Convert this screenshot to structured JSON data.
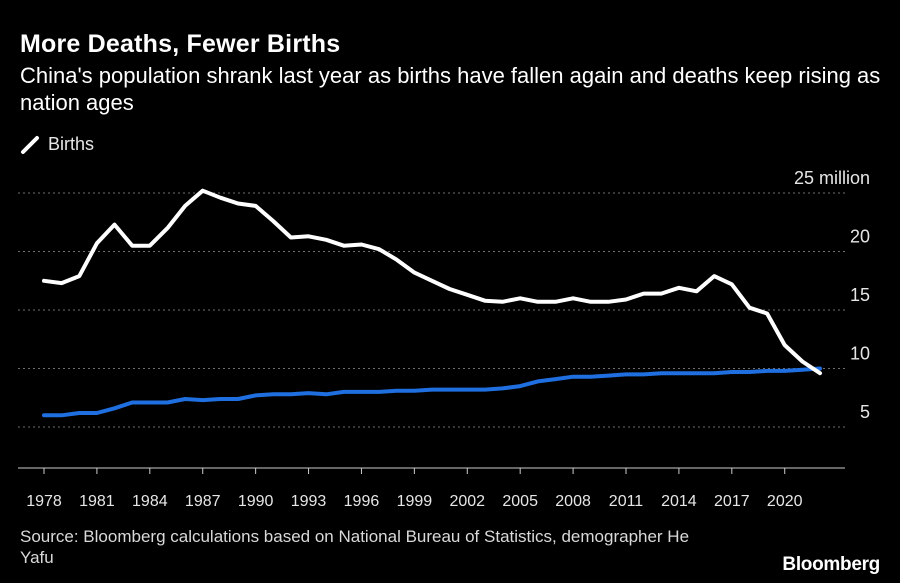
{
  "header": {
    "title": "More Deaths, Fewer Births",
    "subtitle": "China's population shrank last year as births have fallen again and deaths keep rising as nation ages"
  },
  "legend": {
    "label": "Births"
  },
  "footer": {
    "source": "Source: Bloomberg calculations based on National Bureau of Statistics, demographer He Yafu",
    "brand": "Bloomberg"
  },
  "colors": {
    "background": "#000000",
    "births": "#ffffff",
    "deaths": "#1f6fe0",
    "grid": "#6e6e6e",
    "text": "#ffffff"
  },
  "chart_data": {
    "type": "line",
    "x": [
      1978,
      1979,
      1980,
      1981,
      1982,
      1983,
      1984,
      1985,
      1986,
      1987,
      1988,
      1989,
      1990,
      1991,
      1992,
      1993,
      1994,
      1995,
      1996,
      1997,
      1998,
      1999,
      2000,
      2001,
      2002,
      2003,
      2004,
      2005,
      2006,
      2007,
      2008,
      2009,
      2010,
      2011,
      2012,
      2013,
      2014,
      2015,
      2016,
      2017,
      2018,
      2019,
      2020,
      2021,
      2022
    ],
    "series": [
      {
        "name": "Births",
        "color": "#ffffff",
        "values": [
          17.5,
          17.3,
          17.9,
          20.7,
          22.3,
          20.5,
          20.5,
          22.0,
          23.9,
          25.2,
          24.6,
          24.1,
          23.9,
          22.6,
          21.2,
          21.3,
          21.0,
          20.5,
          20.6,
          20.2,
          19.3,
          18.2,
          17.5,
          16.8,
          16.3,
          15.8,
          15.7,
          16.0,
          15.7,
          15.7,
          16.0,
          15.7,
          15.7,
          15.9,
          16.4,
          16.4,
          16.9,
          16.6,
          17.9,
          17.2,
          15.2,
          14.7,
          12.0,
          10.6,
          9.6
        ]
      },
      {
        "name": "",
        "color": "#1f6fe0",
        "values": [
          6.0,
          6.0,
          6.2,
          6.2,
          6.6,
          7.1,
          7.1,
          7.1,
          7.4,
          7.3,
          7.4,
          7.4,
          7.7,
          7.8,
          7.8,
          7.9,
          7.8,
          8.0,
          8.0,
          8.0,
          8.1,
          8.1,
          8.2,
          8.2,
          8.2,
          8.2,
          8.3,
          8.5,
          8.9,
          9.1,
          9.3,
          9.3,
          9.4,
          9.5,
          9.5,
          9.6,
          9.6,
          9.6,
          9.6,
          9.7,
          9.7,
          9.8,
          9.8,
          9.9,
          10.0
        ]
      }
    ],
    "y_ticks": [
      {
        "value": 5,
        "label": "5"
      },
      {
        "value": 10,
        "label": "10"
      },
      {
        "value": 15,
        "label": "15"
      },
      {
        "value": 20,
        "label": "20"
      },
      {
        "value": 25,
        "label": "25 million"
      }
    ],
    "x_ticks": [
      "1978",
      "1981",
      "1984",
      "1987",
      "1990",
      "1993",
      "1996",
      "1999",
      "2002",
      "2005",
      "2008",
      "2011",
      "2014",
      "2017",
      "2020"
    ],
    "ylim": [
      1.5,
      25
    ],
    "grid": true,
    "legend_position": "top-left"
  }
}
